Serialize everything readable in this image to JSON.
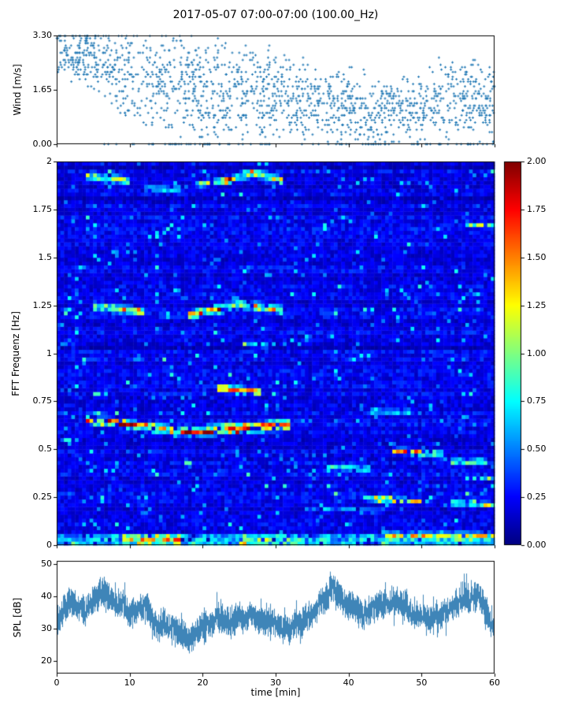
{
  "title": "2017-05-07 07:00-07:00 (100.00_Hz)",
  "chart_data": [
    {
      "type": "scatter",
      "name": "wind-speed",
      "ylabel": "Wind [m/s]",
      "ylim": [
        0,
        3.3
      ],
      "yticks": [
        "0.00",
        "1.65",
        "3.30"
      ],
      "ytick_values": [
        0,
        1.65,
        3.3
      ],
      "xlim": [
        0,
        60
      ],
      "marker_color": "#1f77b4",
      "marker": "plus",
      "n_points": 1700,
      "quantize_step": 0.073,
      "trend_t": [
        0,
        5,
        10,
        15,
        20,
        25,
        30,
        35,
        40,
        45,
        50,
        55,
        60
      ],
      "trend_mean": [
        2.8,
        2.6,
        2.1,
        1.9,
        1.7,
        1.5,
        1.5,
        1.3,
        1.1,
        1.0,
        1.2,
        1.6,
        1.1
      ],
      "trend_spread": [
        0.9,
        1.1,
        1.6,
        1.6,
        1.8,
        1.6,
        1.6,
        1.4,
        1.3,
        1.2,
        1.3,
        1.5,
        1.2
      ]
    },
    {
      "type": "heatmap",
      "name": "fft-spectrogram",
      "ylabel": "FFT Frequenz [Hz]",
      "ylim": [
        0,
        2
      ],
      "yticks": [
        "0",
        "0.25",
        "0.5",
        "0.75",
        "1",
        "1.25",
        "1.5",
        "1.75",
        "2"
      ],
      "ytick_values": [
        0,
        0.25,
        0.5,
        0.75,
        1,
        1.25,
        1.5,
        1.75,
        2
      ],
      "xlim": [
        0,
        60
      ],
      "colormap": "jet",
      "clim": [
        0,
        2
      ],
      "colorbar_ticks": [
        "0.00",
        "0.25",
        "0.50",
        "0.75",
        "1.00",
        "1.25",
        "1.50",
        "1.75",
        "2.00"
      ],
      "colorbar_tick_values": [
        0,
        0.25,
        0.5,
        0.75,
        1,
        1.25,
        1.5,
        1.75,
        2
      ],
      "grid": {
        "nt": 120,
        "nf": 100
      },
      "background": {
        "base": 0.1,
        "noise": 0.22,
        "speckle_prob": 0.05,
        "speckle_min": 0.35,
        "speckle_max": 0.75
      },
      "features": [
        {
          "t0": 4,
          "t1": 10,
          "f0": 1.93,
          "f1": 1.9,
          "w": 0.03,
          "amp": 1.0
        },
        {
          "t0": 12,
          "t1": 17,
          "f0": 1.86,
          "f1": 1.86,
          "w": 0.025,
          "amp": 0.7
        },
        {
          "t0": 19,
          "t1": 24,
          "f0": 1.88,
          "f1": 1.91,
          "w": 0.025,
          "amp": 0.9
        },
        {
          "t0": 23,
          "t1": 27,
          "f0": 1.9,
          "f1": 1.94,
          "w": 0.03,
          "amp": 1.2
        },
        {
          "t0": 27,
          "t1": 31,
          "f0": 1.94,
          "f1": 1.9,
          "w": 0.03,
          "amp": 1.1
        },
        {
          "t0": 5,
          "t1": 12,
          "f0": 1.25,
          "f1": 1.22,
          "w": 0.03,
          "amp": 1.0
        },
        {
          "t0": 18,
          "t1": 25,
          "f0": 1.2,
          "f1": 1.26,
          "w": 0.03,
          "amp": 1.1
        },
        {
          "t0": 25,
          "t1": 31,
          "f0": 1.26,
          "f1": 1.23,
          "w": 0.03,
          "amp": 1.2
        },
        {
          "t0": 25,
          "t1": 29,
          "f0": 1.05,
          "f1": 1.04,
          "w": 0.02,
          "amp": 0.9
        },
        {
          "t0": 22,
          "t1": 28,
          "f0": 0.82,
          "f1": 0.8,
          "w": 0.025,
          "amp": 1.4
        },
        {
          "t0": 4,
          "t1": 18,
          "f0": 0.66,
          "f1": 0.59,
          "w": 0.03,
          "amp": 1.4
        },
        {
          "t0": 18,
          "t1": 32,
          "f0": 0.59,
          "f1": 0.63,
          "w": 0.035,
          "amp": 1.5
        },
        {
          "t0": 46,
          "t1": 53,
          "f0": 0.5,
          "f1": 0.47,
          "w": 0.025,
          "amp": 1.1
        },
        {
          "t0": 54,
          "t1": 59,
          "f0": 0.44,
          "f1": 0.44,
          "w": 0.02,
          "amp": 0.9
        },
        {
          "t0": 37,
          "t1": 43,
          "f0": 0.41,
          "f1": 0.4,
          "w": 0.02,
          "amp": 0.8
        },
        {
          "t0": 42,
          "t1": 50,
          "f0": 0.25,
          "f1": 0.23,
          "w": 0.02,
          "amp": 1.0
        },
        {
          "t0": 54,
          "t1": 60,
          "f0": 0.22,
          "f1": 0.21,
          "w": 0.02,
          "amp": 0.8
        },
        {
          "t0": 34,
          "t1": 45,
          "f0": 0.19,
          "f1": 0.18,
          "w": 0.015,
          "amp": 0.6
        },
        {
          "t0": 56,
          "t1": 60,
          "f0": 0.35,
          "f1": 0.35,
          "w": 0.02,
          "amp": 0.9
        },
        {
          "t0": 43,
          "t1": 49,
          "f0": 0.7,
          "f1": 0.7,
          "w": 0.02,
          "amp": 0.6
        },
        {
          "t0": 56,
          "t1": 60,
          "f0": 1.67,
          "f1": 1.67,
          "w": 0.02,
          "amp": 0.7
        },
        {
          "t0": 0,
          "t1": 3,
          "f0": 0.55,
          "f1": 0.55,
          "w": 0.02,
          "amp": 0.7
        },
        {
          "t0": 0,
          "t1": 60,
          "f0": 0.03,
          "f1": 0.03,
          "w": 0.035,
          "amp": 1.1
        },
        {
          "t0": 9,
          "t1": 17,
          "f0": 0.03,
          "f1": 0.03,
          "w": 0.03,
          "amp": 1.5
        },
        {
          "t0": 25,
          "t1": 34,
          "f0": 0.03,
          "f1": 0.03,
          "w": 0.03,
          "amp": 0.8
        },
        {
          "t0": 45,
          "t1": 60,
          "f0": 0.05,
          "f1": 0.05,
          "w": 0.03,
          "amp": 0.9
        }
      ]
    },
    {
      "type": "line",
      "name": "spl",
      "ylabel": "SPL [dB]",
      "xlabel": "time [min]",
      "ylim": [
        16,
        51
      ],
      "yticks": [
        "20",
        "30",
        "40",
        "50"
      ],
      "ytick_values": [
        20,
        30,
        40,
        50
      ],
      "xlim": [
        0,
        60
      ],
      "xticks": [
        "0",
        "10",
        "20",
        "30",
        "40",
        "50",
        "60"
      ],
      "xtick_values": [
        0,
        10,
        20,
        30,
        40,
        50,
        60
      ],
      "color": "#3f85b8",
      "noise_db": 3.2,
      "t": [
        0,
        2,
        4,
        6,
        8,
        10,
        12,
        14,
        16,
        18,
        20,
        22,
        24,
        26,
        28,
        30,
        32,
        34,
        36,
        38,
        40,
        42,
        44,
        46,
        48,
        50,
        52,
        54,
        56,
        58,
        60
      ],
      "mean_db": [
        31,
        38,
        34,
        40,
        39,
        34,
        36,
        32,
        30,
        26,
        30,
        33,
        31,
        34,
        33,
        32,
        30,
        34,
        38,
        42,
        38,
        36,
        38,
        36,
        36,
        34,
        35,
        36,
        40,
        38,
        29
      ]
    }
  ]
}
